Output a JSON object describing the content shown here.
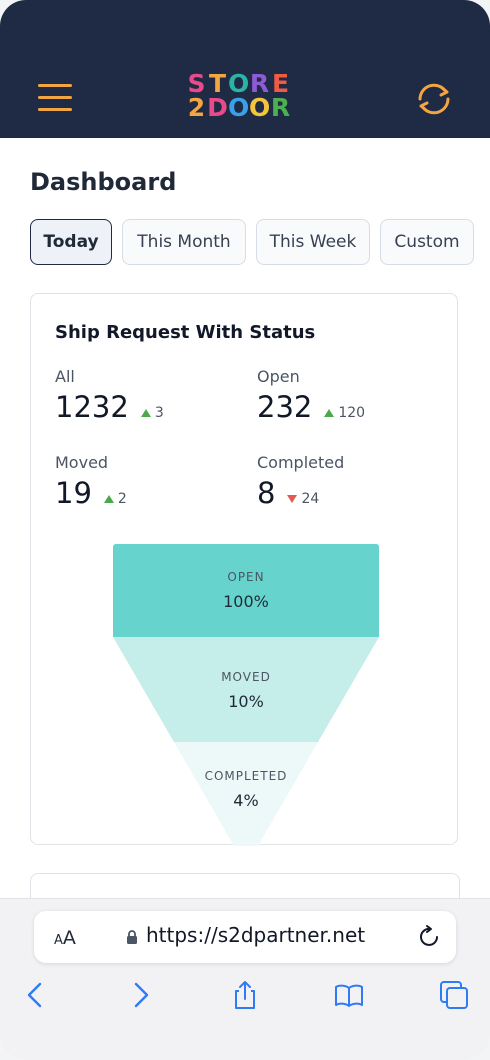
{
  "header": {
    "logo": {
      "line1": [
        {
          "char": "S",
          "color": "#e94b8a"
        },
        {
          "char": "T",
          "color": "#f2a541"
        },
        {
          "char": "O",
          "color": "#2bb3a3"
        },
        {
          "char": "R",
          "color": "#8e5bd6"
        },
        {
          "char": "E",
          "color": "#ef5a43"
        }
      ],
      "line2": [
        {
          "char": "2",
          "color": "#f2a541"
        },
        {
          "char": "D",
          "color": "#e94b8a"
        },
        {
          "char": "O",
          "color": "#3aa0e8"
        },
        {
          "char": "O",
          "color": "#f2c53d"
        },
        {
          "char": "R",
          "color": "#4caf50"
        }
      ]
    },
    "menu_icon": "hamburger-icon",
    "refresh_icon": "refresh-icon"
  },
  "page_title": "Dashboard",
  "tabs": [
    {
      "label": "Today",
      "active": true
    },
    {
      "label": "This Month",
      "active": false
    },
    {
      "label": "This Week",
      "active": false
    },
    {
      "label": "Custom",
      "active": false
    }
  ],
  "card": {
    "title": "Ship Request With Status",
    "stats": [
      {
        "label": "All",
        "value": "1232",
        "delta": "3",
        "direction": "up"
      },
      {
        "label": "Open",
        "value": "232",
        "delta": "120",
        "direction": "up"
      },
      {
        "label": "Moved",
        "value": "19",
        "delta": "2",
        "direction": "up"
      },
      {
        "label": "Completed",
        "value": "8",
        "delta": "24",
        "direction": "down"
      }
    ],
    "funnel": [
      {
        "label": "OPEN",
        "value": "100%",
        "color": "#66d4cc"
      },
      {
        "label": "MOVED",
        "value": "10%",
        "color": "#c5eeea"
      },
      {
        "label": "COMPLETED",
        "value": "4%",
        "color": "#edf9f8"
      }
    ]
  },
  "browser": {
    "text_size_label_small": "A",
    "text_size_label_large": "A",
    "url": "https://s2dpartner.net",
    "icons": [
      "lock-icon",
      "reload-icon",
      "back-icon",
      "forward-icon",
      "share-icon",
      "bookmarks-icon",
      "tabs-icon"
    ]
  }
}
